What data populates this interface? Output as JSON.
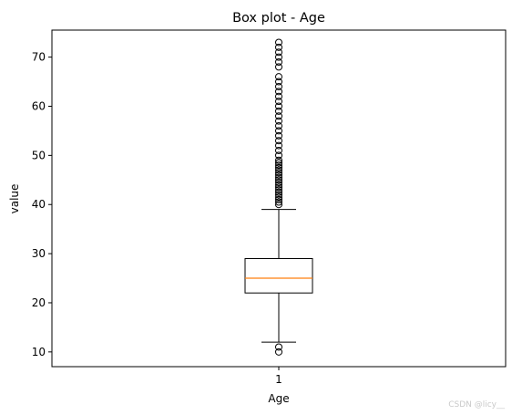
{
  "chart_data": {
    "type": "box",
    "title": "Box plot - Age",
    "xlabel": "Age",
    "ylabel": "value",
    "categories": [
      "1"
    ],
    "ylim": [
      7,
      75.5
    ],
    "yticks": [
      10,
      20,
      30,
      40,
      50,
      60,
      70
    ],
    "boxes": [
      {
        "category": "1",
        "whisker_low": 12,
        "q1": 22,
        "median": 25,
        "q3": 29,
        "whisker_high": 39,
        "outliers": [
          10,
          11,
          40,
          40.5,
          41,
          41.5,
          42,
          42.5,
          43,
          43.5,
          44,
          44.5,
          45,
          45.5,
          46,
          46.5,
          47,
          47.5,
          48,
          48.5,
          49,
          50,
          51,
          52,
          53,
          54,
          55,
          56,
          57,
          58,
          59,
          60,
          61,
          62,
          63,
          64,
          65,
          66,
          68,
          69,
          70,
          71,
          72,
          73
        ]
      }
    ],
    "grid": false,
    "legend": "none",
    "colors": {
      "box": "#000000",
      "median": "#ff7f0e",
      "axes": "#000000"
    }
  },
  "watermark": "CSDN @licy__"
}
